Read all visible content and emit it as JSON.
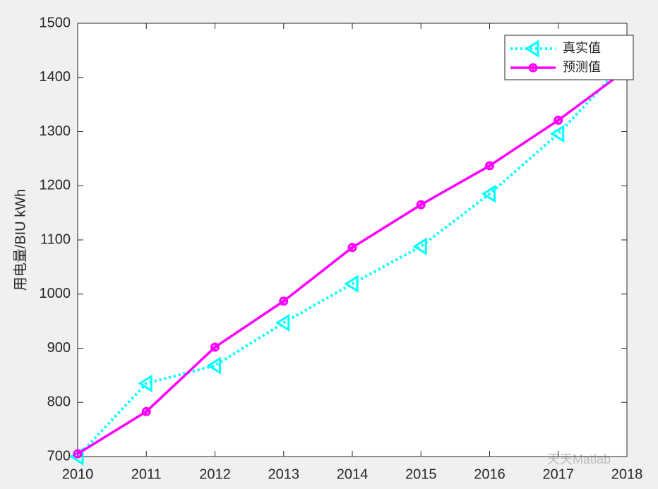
{
  "chart_data": {
    "type": "line",
    "ylabel": "用电量/BIU kWh",
    "x": [
      2010,
      2011,
      2012,
      2013,
      2014,
      2015,
      2016,
      2017,
      2018
    ],
    "series": [
      {
        "name": "真实值",
        "color": "#00ffff",
        "values": [
          700,
          835,
          868,
          947,
          1019,
          1088,
          1185,
          1296,
          1431
        ]
      },
      {
        "name": "预测值",
        "color": "#ff00ff",
        "values": [
          705,
          783,
          902,
          987,
          1086,
          1165,
          1237,
          1321,
          1415
        ]
      }
    ],
    "xlim": [
      2010,
      2018
    ],
    "xticks": [
      2010,
      2011,
      2012,
      2013,
      2014,
      2015,
      2016,
      2017,
      2018
    ],
    "ylim": [
      700,
      1500
    ],
    "yticks": [
      700,
      800,
      900,
      1000,
      1100,
      1200,
      1300,
      1400,
      1500
    ],
    "grid": false,
    "legend": "northeast",
    "watermark": "天天Matlab"
  }
}
